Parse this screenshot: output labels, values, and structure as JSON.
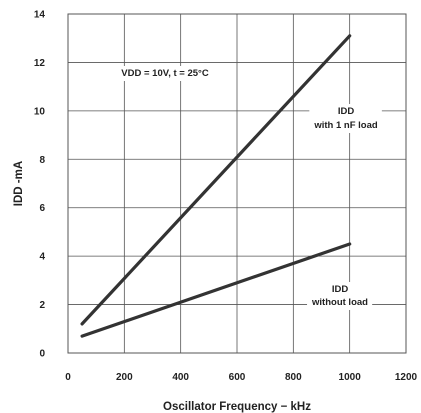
{
  "chart_data": {
    "type": "line",
    "xlabel": "Oscillator Frequency − kHz",
    "ylabel": "IDD -mA",
    "xlim": [
      0,
      1200
    ],
    "ylim": [
      0,
      14
    ],
    "x_ticks": [
      0,
      200,
      400,
      600,
      800,
      1000,
      1200
    ],
    "y_ticks": [
      0,
      2,
      4,
      6,
      8,
      10,
      12,
      14
    ],
    "grid": true,
    "line_color": "#333333",
    "grid_color": "#555555",
    "series": [
      {
        "name": "IDD with 1 nF load",
        "x": [
          50,
          1000
        ],
        "y": [
          1.2,
          13.1
        ]
      },
      {
        "name": "IDD without load",
        "x": [
          50,
          1000
        ],
        "y": [
          0.7,
          4.5
        ]
      }
    ],
    "annotations": [
      {
        "id": "conditions",
        "lines": [
          "VDD = 10V, t = 25°C"
        ]
      },
      {
        "id": "loaded",
        "lines": [
          "IDD",
          "with 1 nF load"
        ]
      },
      {
        "id": "unloaded",
        "lines": [
          "IDD",
          "without load"
        ]
      }
    ]
  }
}
